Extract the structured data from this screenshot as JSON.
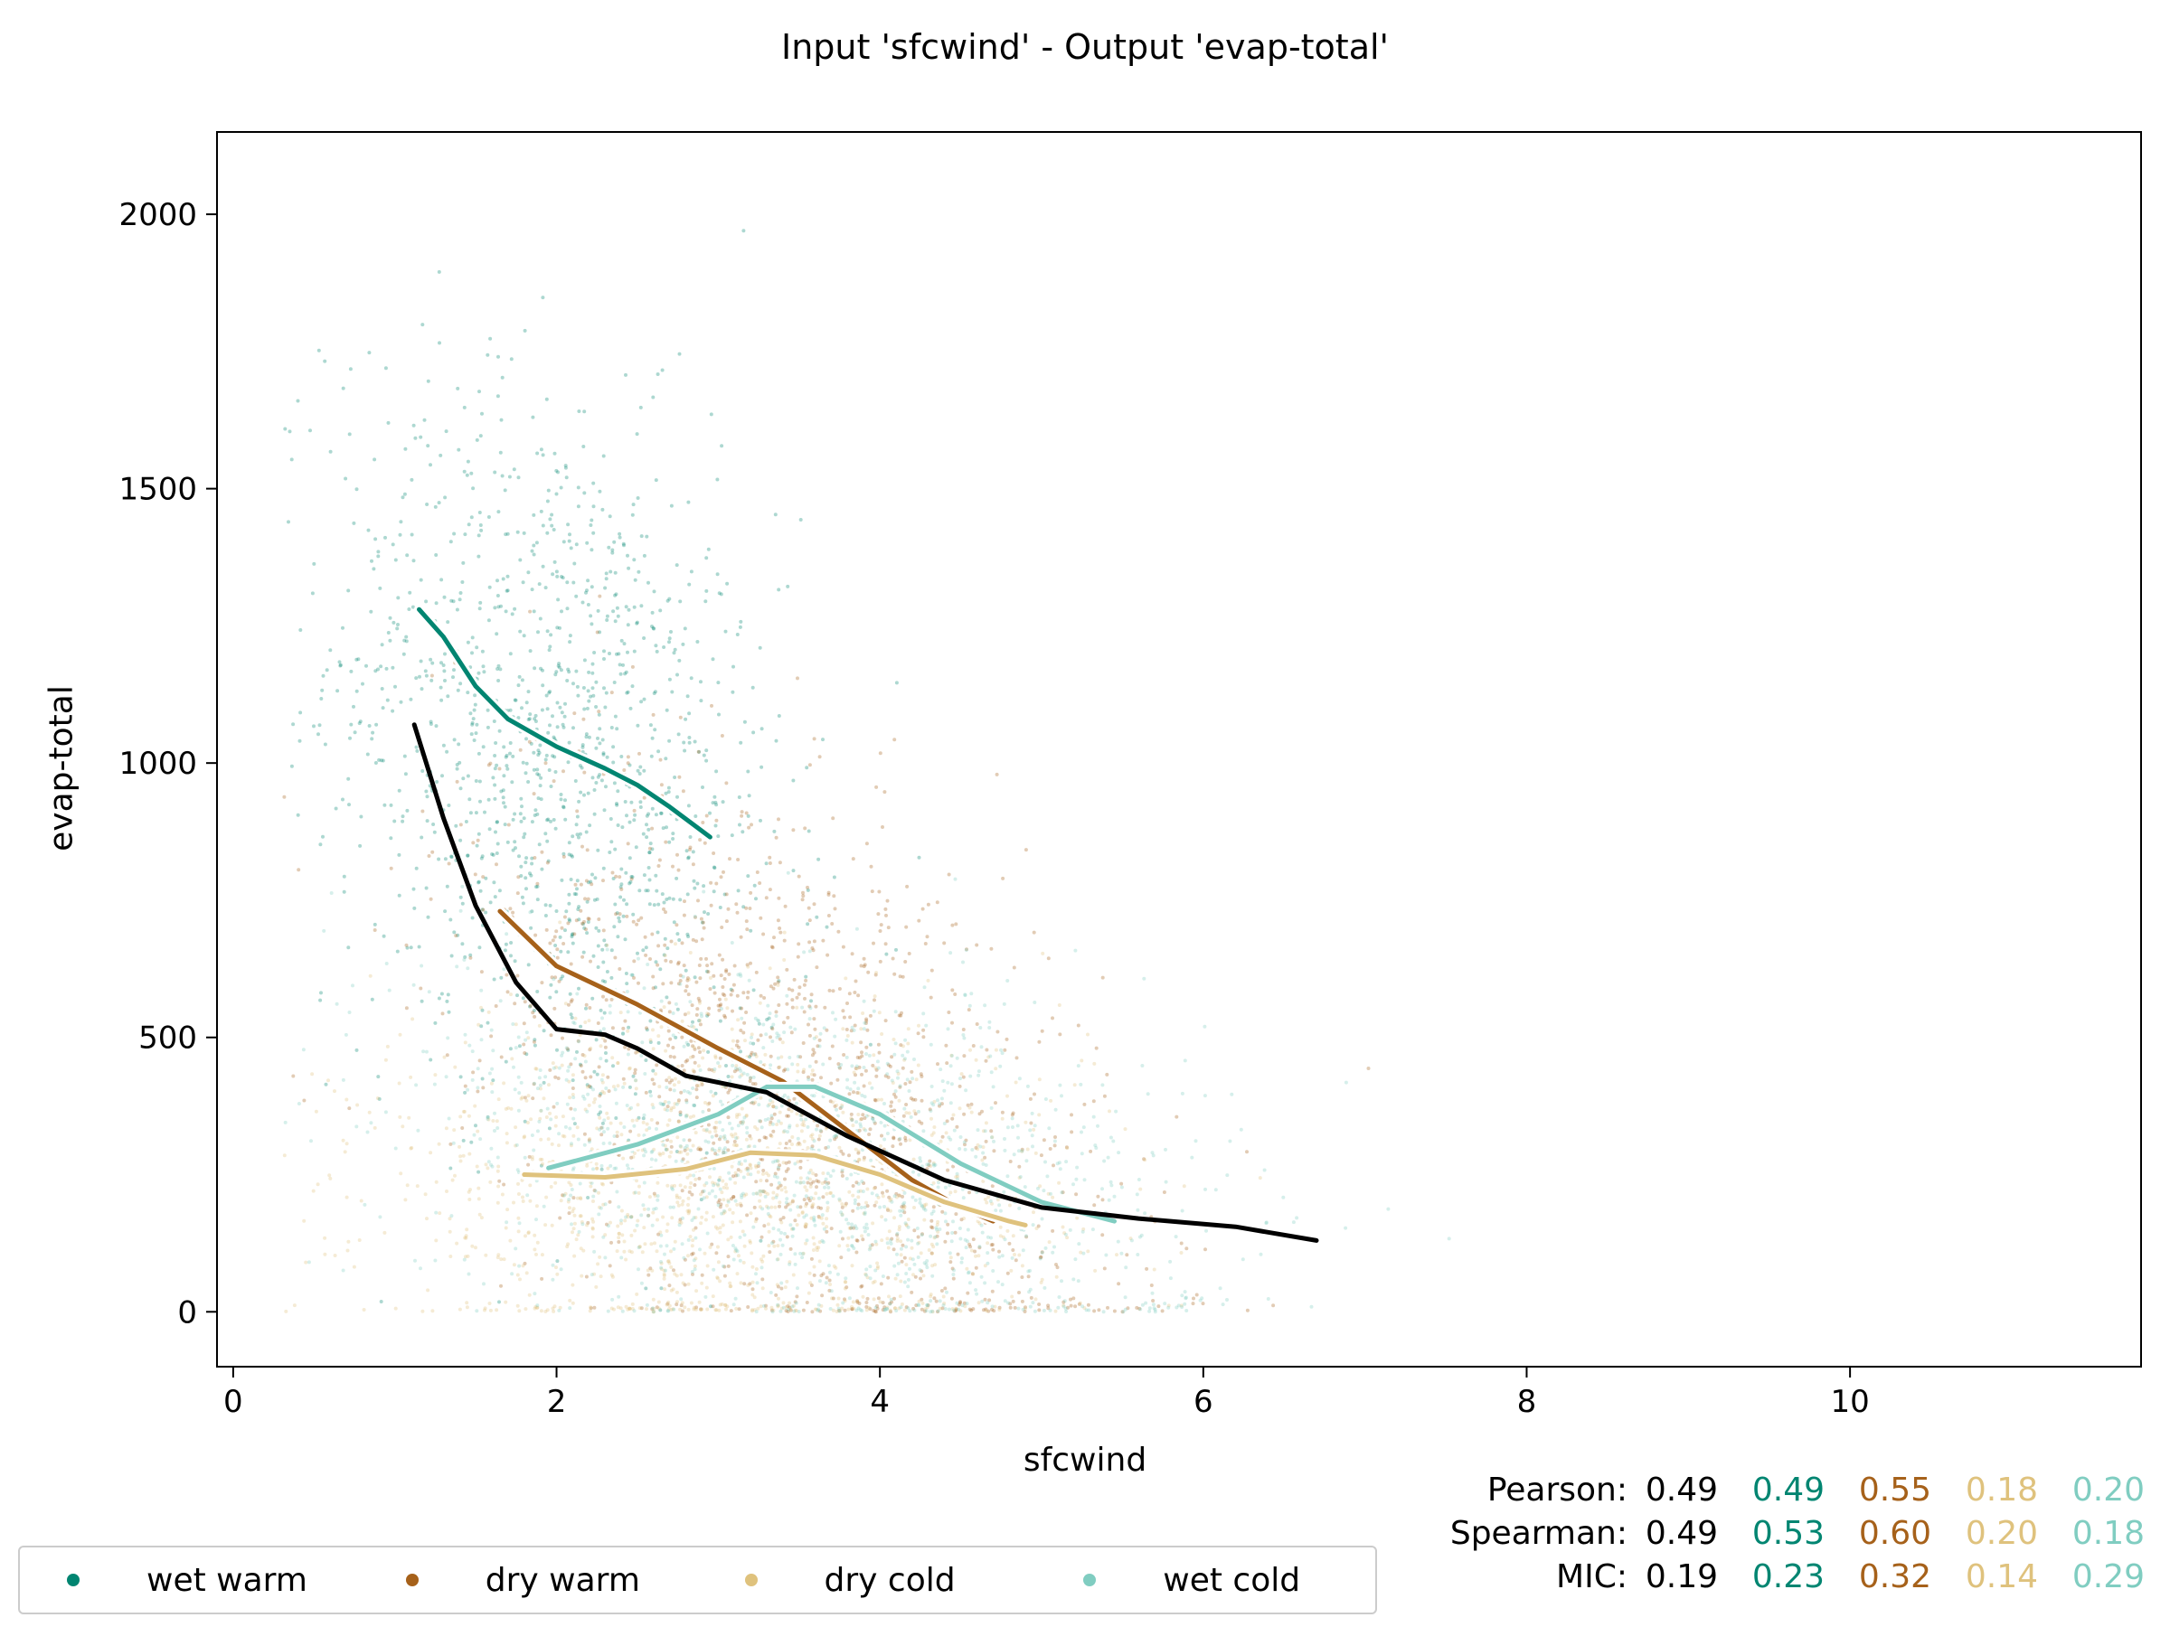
{
  "chart_data": {
    "type": "scatter",
    "title": "Input 'sfcwind' - Output 'evap-total'",
    "xlabel": "sfcwind",
    "ylabel": "evap-total",
    "xlim": [
      -0.1,
      11.8
    ],
    "ylim": [
      -100,
      2150
    ],
    "xticks": [
      0,
      2,
      4,
      6,
      8,
      10
    ],
    "yticks": [
      0,
      500,
      1000,
      1500,
      2000
    ],
    "grid": false,
    "legend_position": "bottom-left",
    "series": [
      {
        "name": "wet warm",
        "color": "#018571",
        "trend": [
          [
            1.15,
            1280
          ],
          [
            1.3,
            1230
          ],
          [
            1.5,
            1140
          ],
          [
            1.7,
            1080
          ],
          [
            2.0,
            1030
          ],
          [
            2.3,
            990
          ],
          [
            2.5,
            960
          ],
          [
            2.7,
            920
          ],
          [
            2.95,
            865
          ]
        ],
        "cloud": {
          "center": [
            2.0,
            1000
          ],
          "spread": [
            0.7,
            330
          ],
          "slope": -140
        }
      },
      {
        "name": "dry warm",
        "color": "#a6611a",
        "trend": [
          [
            1.65,
            730
          ],
          [
            2.0,
            630
          ],
          [
            2.5,
            560
          ],
          [
            3.0,
            480
          ],
          [
            3.4,
            420
          ],
          [
            3.8,
            330
          ],
          [
            4.2,
            240
          ],
          [
            4.5,
            190
          ],
          [
            4.7,
            165
          ]
        ],
        "cloud": {
          "center": [
            3.4,
            420
          ],
          "spread": [
            1.0,
            260
          ],
          "slope": -150
        }
      },
      {
        "name": "dry cold",
        "color": "#dfc27d",
        "trend": [
          [
            1.8,
            250
          ],
          [
            2.3,
            245
          ],
          [
            2.8,
            260
          ],
          [
            3.2,
            290
          ],
          [
            3.6,
            285
          ],
          [
            4.0,
            250
          ],
          [
            4.4,
            200
          ],
          [
            4.8,
            165
          ],
          [
            4.9,
            158
          ]
        ],
        "cloud": {
          "center": [
            3.0,
            220
          ],
          "spread": [
            1.1,
            160
          ],
          "slope": -10
        }
      },
      {
        "name": "wet cold",
        "color": "#80cdc1",
        "trend": [
          [
            1.95,
            262
          ],
          [
            2.5,
            305
          ],
          [
            3.0,
            360
          ],
          [
            3.3,
            410
          ],
          [
            3.6,
            410
          ],
          [
            4.0,
            360
          ],
          [
            4.5,
            270
          ],
          [
            5.0,
            200
          ],
          [
            5.45,
            165
          ]
        ],
        "cloud": {
          "center": [
            3.6,
            270
          ],
          "spread": [
            1.2,
            170
          ],
          "slope": -50
        }
      }
    ],
    "overall_trend": {
      "color": "#000000",
      "points": [
        [
          1.12,
          1070
        ],
        [
          1.3,
          900
        ],
        [
          1.5,
          740
        ],
        [
          1.75,
          600
        ],
        [
          2.0,
          515
        ],
        [
          2.3,
          505
        ],
        [
          2.5,
          480
        ],
        [
          2.8,
          430
        ],
        [
          3.3,
          400
        ],
        [
          3.8,
          320
        ],
        [
          4.4,
          240
        ],
        [
          5.0,
          190
        ],
        [
          5.6,
          170
        ],
        [
          6.2,
          155
        ],
        [
          6.7,
          130
        ]
      ]
    },
    "statistics": {
      "labels": {
        "pearson": "Pearson:",
        "spearman": "Spearman:",
        "mic": "MIC:"
      },
      "pearson": [
        "0.49",
        "0.49",
        "0.55",
        "0.18",
        "0.20"
      ],
      "spearman": [
        "0.49",
        "0.53",
        "0.60",
        "0.20",
        "0.18"
      ],
      "mic": [
        "0.19",
        "0.23",
        "0.32",
        "0.14",
        "0.29"
      ],
      "colors": [
        "#000000",
        "#018571",
        "#a6611a",
        "#dfc27d",
        "#80cdc1"
      ]
    }
  }
}
